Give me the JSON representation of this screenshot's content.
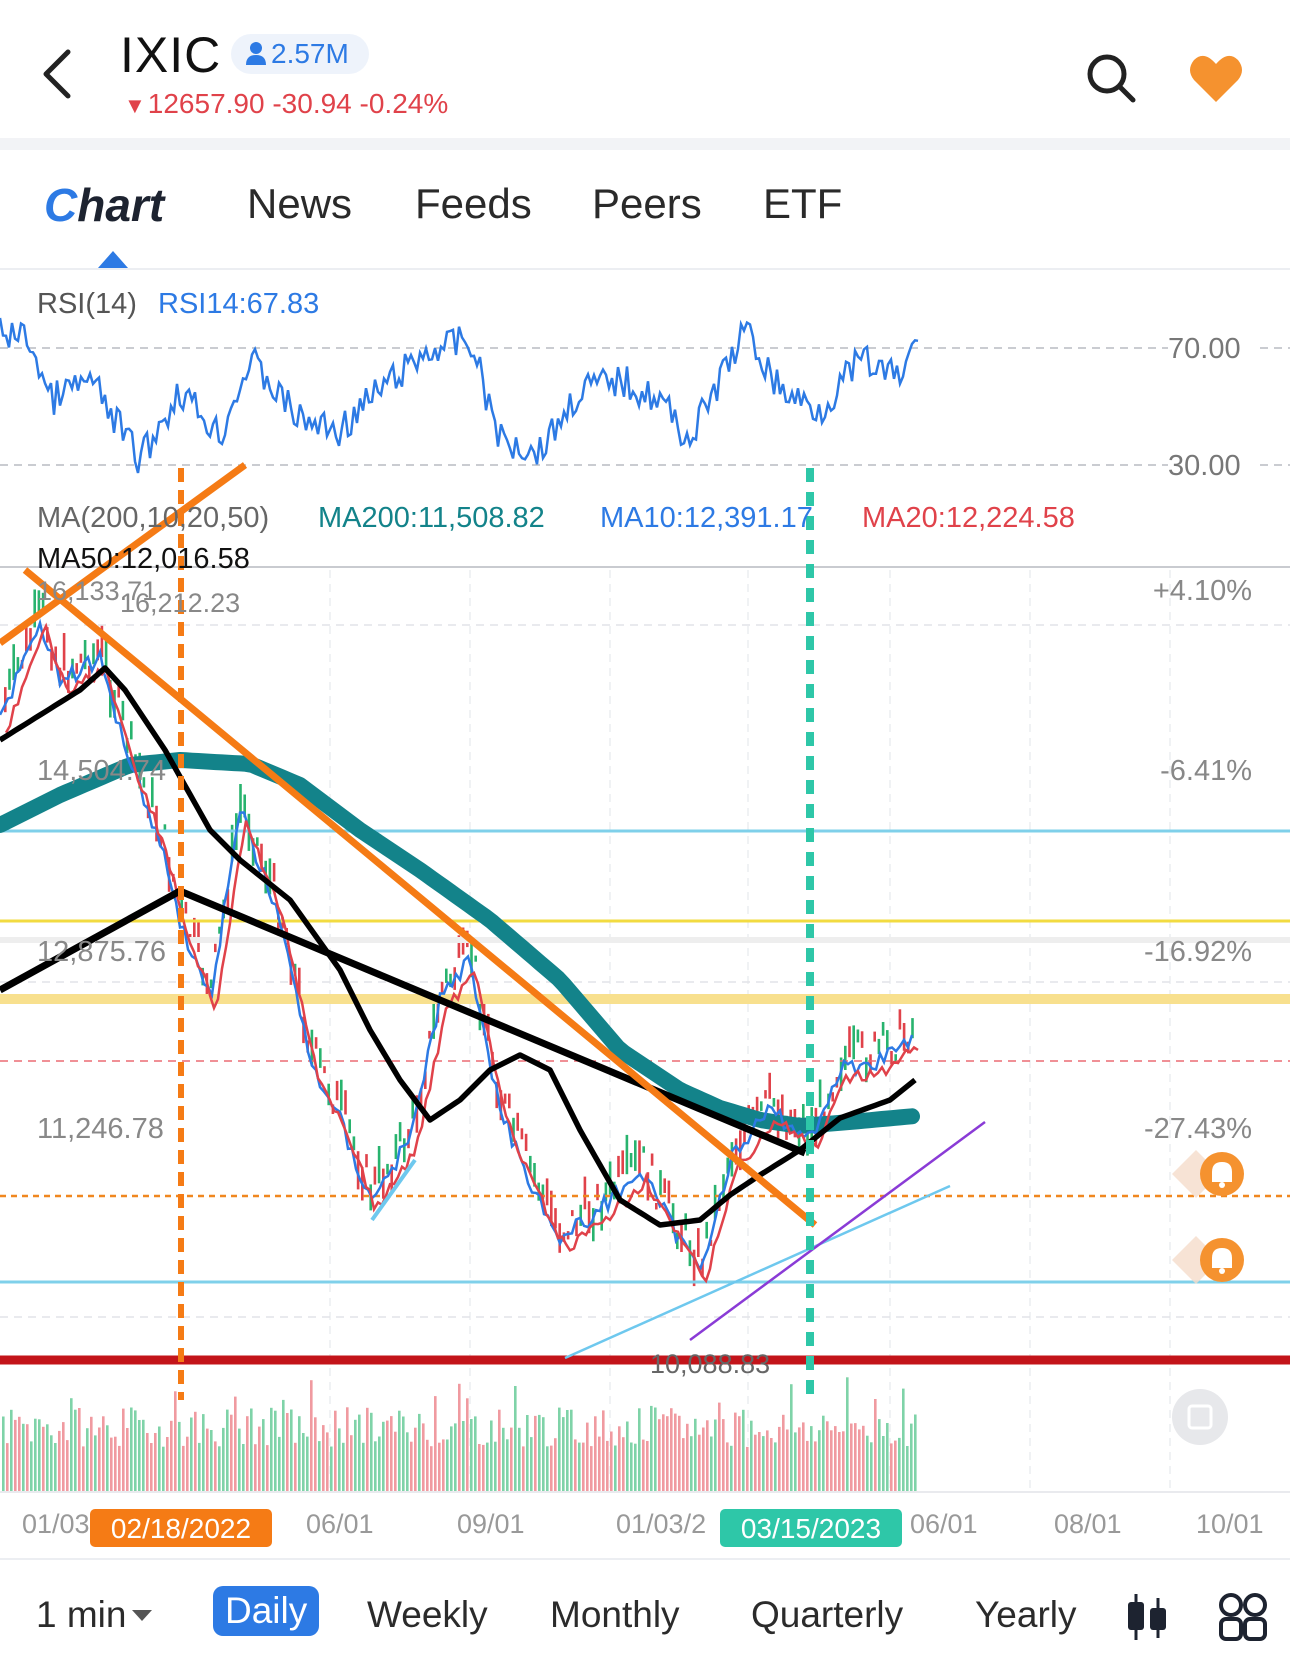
{
  "header": {
    "symbol": "IXIC",
    "followers": "2.57M",
    "price_change": "12657.90 -30.94 -0.24%",
    "colors": {
      "down": "#e0424a",
      "accent": "#2d7ae4",
      "favorite": "#f5922f"
    }
  },
  "tabs": [
    "Chart",
    "News",
    "Feeds",
    "Peers",
    "ETF"
  ],
  "tab_chart_first": "C",
  "tab_chart_rest": "hart",
  "rsi": {
    "label": "RSI(14)",
    "value": "RSI14:67.83",
    "upper_level": "70.00",
    "lower_level": "30.00"
  },
  "ma": {
    "label": "MA(200,10,20,50)",
    "ma200": "MA200:11,508.82",
    "ma10": "MA10:12,391.17",
    "ma20": "MA20:12,224.58",
    "ma50": "MA50:12,016.58"
  },
  "price_labels": {
    "high_a": "16,133.71",
    "high_b": "16,212.23",
    "p1": "14,504.74",
    "p2": "12,875.76",
    "p3": "11,246.78",
    "low": "10,088.83"
  },
  "pct_labels": [
    "+4.10%",
    "-6.41%",
    "-16.92%",
    "-27.43%"
  ],
  "x_axis": [
    "01/03",
    "06/01",
    "09/01",
    "01/03/2",
    "06/01",
    "08/01",
    "10/01"
  ],
  "markers": {
    "orange_date": "02/18/2022",
    "teal_date": "03/15/2023"
  },
  "periods": [
    "1 min",
    "Daily",
    "Weekly",
    "Monthly",
    "Quarterly",
    "Yearly"
  ],
  "active_period": "Daily",
  "icons": [
    "back-arrow-icon",
    "person-icon",
    "search-icon",
    "heart-icon",
    "candlestick-icon",
    "grid-icon",
    "fullscreen-icon",
    "alert-bell-icon"
  ]
}
